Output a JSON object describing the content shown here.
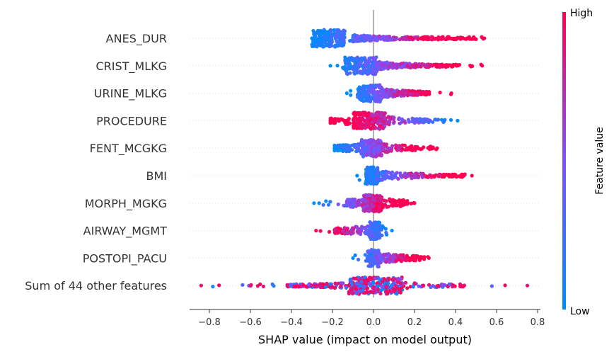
{
  "chart_data": {
    "type": "scatter",
    "subtype": "shap-beeswarm",
    "title": "",
    "xlabel": "SHAP value (impact on model output)",
    "xlim": [
      -0.9,
      0.82
    ],
    "xticks": [
      -0.8,
      -0.6,
      -0.4,
      -0.2,
      0.0,
      0.2,
      0.4,
      0.6,
      0.8
    ],
    "xtick_labels": [
      "−0.8",
      "−0.6",
      "−0.4",
      "−0.2",
      "0.0",
      "0.2",
      "0.4",
      "0.6",
      "0.8"
    ],
    "features": [
      {
        "name": "ANES_DUR",
        "min": -0.3,
        "max": 0.54,
        "low_side": "negative",
        "core": [
          -0.3,
          -0.14
        ],
        "bulk": [
          -0.1,
          0.5
        ],
        "density": 4.0
      },
      {
        "name": "CRIST_MLKG",
        "min": -0.21,
        "max": 0.53,
        "low_side": "negative",
        "core": [
          -0.14,
          0.02
        ],
        "bulk": [
          0.02,
          0.42
        ],
        "density": 3.2
      },
      {
        "name": "URINE_MLKG",
        "min": -0.13,
        "max": 0.38,
        "low_side": "negative",
        "core": [
          -0.08,
          0.04
        ],
        "bulk": [
          0.04,
          0.28
        ],
        "density": 2.6
      },
      {
        "name": "PROCEDURE",
        "min": -0.21,
        "max": 0.41,
        "low_side": "positive",
        "core": [
          -0.1,
          0.06
        ],
        "bulk": [
          -0.21,
          0.35
        ],
        "density": 2.8
      },
      {
        "name": "FENT_MCGKG",
        "min": -0.19,
        "max": 0.31,
        "low_side": "negative",
        "core": [
          -0.06,
          0.04
        ],
        "bulk": [
          -0.19,
          0.29
        ],
        "density": 2.6
      },
      {
        "name": "BMI",
        "min": -0.08,
        "max": 0.48,
        "low_side": "negative",
        "core": [
          -0.04,
          0.02
        ],
        "bulk": [
          0.02,
          0.45
        ],
        "density": 2.2
      },
      {
        "name": "MORPH_MGKG",
        "min": -0.29,
        "max": 0.2,
        "low_side": "negative",
        "core": [
          -0.05,
          0.04
        ],
        "bulk": [
          -0.13,
          0.18
        ],
        "density": 2.6
      },
      {
        "name": "AIRWAY_MGMT",
        "min": -0.28,
        "max": 0.09,
        "low_side": "positive",
        "core": [
          -0.02,
          0.03
        ],
        "bulk": [
          -0.19,
          0.08
        ],
        "density": 1.8
      },
      {
        "name": "POSTOPI_PACU",
        "min": -0.1,
        "max": 0.27,
        "low_side": "negative",
        "core": [
          -0.03,
          0.03
        ],
        "bulk": [
          0.03,
          0.24
        ],
        "density": 2.0
      },
      {
        "name": "Sum of 44 other features",
        "min": -0.84,
        "max": 0.75,
        "low_side": "mixed",
        "core": [
          -0.12,
          0.14
        ],
        "bulk": [
          -0.42,
          0.45
        ],
        "density": 3.6
      }
    ],
    "colorbar": {
      "label": "Feature value",
      "high_label": "High",
      "low_label": "Low",
      "high_color": "#ff0052",
      "low_color": "#008bfb"
    }
  }
}
